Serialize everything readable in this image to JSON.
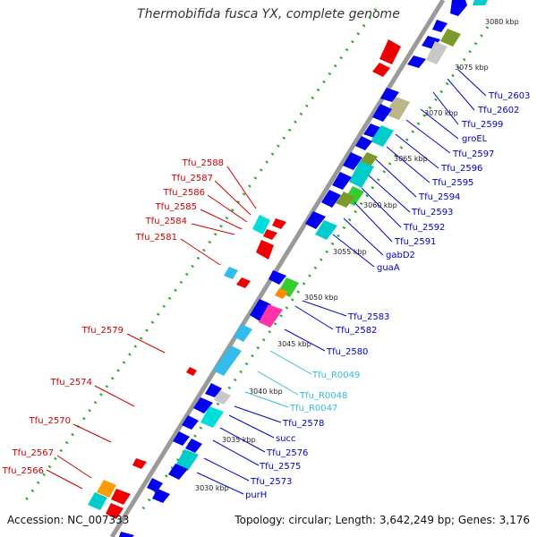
{
  "title": "Thermobifida fusca YX, complete genome",
  "footer": {
    "accession": "Accession: NC_007333",
    "summary": "Topology: circular; Length: 3,642,249 bp; Genes: 3,176"
  },
  "colors": {
    "backbone": "#999999",
    "forward_label": "#0000cc",
    "reverse_label": "#cc0000",
    "rna_label": "#33bbdd",
    "tick_dots": "#22aa22",
    "forward_gene": "#0000ee",
    "reverse_gene": "#ee0000"
  },
  "scale_ticks": [
    "3030 kbp",
    "3035 kbp",
    "3040 kbp",
    "3045 kbp",
    "3050 kbp",
    "3055 kbp",
    "3060 kbp",
    "3065 kbp",
    "3070 kbp",
    "3075 kbp",
    "3080 kbp"
  ],
  "left_labels": [
    "Tfu_2588",
    "Tfu_2587",
    "Tfu_2586",
    "Tfu_2585",
    "Tfu_2584",
    "Tfu_2581",
    "Tfu_2579",
    "Tfu_2574",
    "Tfu_2570",
    "Tfu_2567",
    "Tfu_2566"
  ],
  "right_labels": [
    "Tfu_2603",
    "Tfu_2602",
    "Tfu_2599",
    "groEL",
    "Tfu_2597",
    "Tfu_2596",
    "Tfu_2595",
    "Tfu_2594",
    "Tfu_2593",
    "Tfu_2592",
    "Tfu_2591",
    "gabD2",
    "guaA",
    "Tfu_2583",
    "Tfu_2582",
    "Tfu_2580",
    "Tfu_R0049",
    "Tfu_R0048",
    "Tfu_R0047",
    "Tfu_2578",
    "succ",
    "Tfu_2576",
    "Tfu_2575",
    "Tfu_2573",
    "purH"
  ]
}
